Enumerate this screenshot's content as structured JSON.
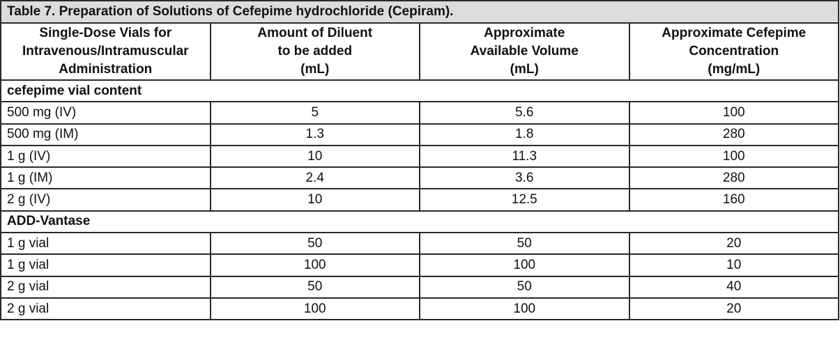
{
  "title": "Table 7. Preparation of Solutions of Cefepime hydrochloride (Cepiram).",
  "headers": [
    [
      "Single-Dose Vials for",
      "Intravenous/Intramuscular",
      "Administration"
    ],
    [
      "Amount of Diluent",
      "to be added",
      "(mL)"
    ],
    [
      "Approximate",
      "Available Volume",
      "(mL)"
    ],
    [
      "Approximate Cefepime",
      "Concentration",
      "(mg/mL)"
    ]
  ],
  "sections": [
    {
      "label": "cefepime vial content",
      "rows": [
        [
          "500 mg (IV)",
          "5",
          "5.6",
          "100"
        ],
        [
          "500 mg (IM)",
          "1.3",
          "1.8",
          "280"
        ],
        [
          "1 g (IV)",
          "10",
          "11.3",
          "100"
        ],
        [
          "1 g (IM)",
          "2.4",
          "3.6",
          "280"
        ],
        [
          "2 g (IV)",
          "10",
          "12.5",
          "160"
        ]
      ]
    },
    {
      "label": "ADD-Vantase",
      "rows": [
        [
          "1 g vial",
          "50",
          "50",
          "20"
        ],
        [
          "1 g vial",
          "100",
          "100",
          "10"
        ],
        [
          "2 g vial",
          "50",
          "50",
          "40"
        ],
        [
          "2 g vial",
          "100",
          "100",
          "20"
        ]
      ]
    }
  ],
  "colors": {
    "title_bg": "#dcdcdc",
    "border": "#2a2a2a"
  }
}
